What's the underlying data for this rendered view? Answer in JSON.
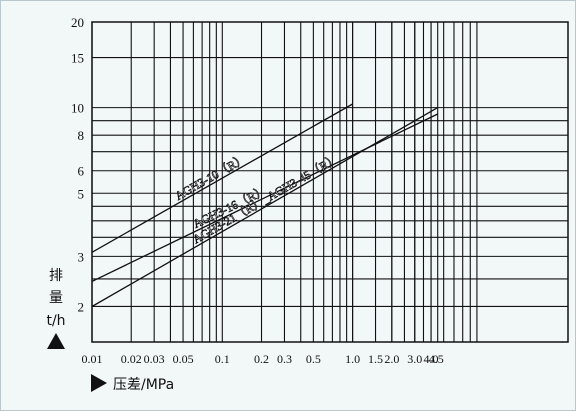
{
  "chart_data": {
    "type": "line",
    "x_scale": "log",
    "y_scale": "log",
    "xlim": [
      0.01,
      45
    ],
    "ylim": [
      1.5,
      20
    ],
    "grid": true,
    "x_ticks": [
      0.01,
      0.02,
      0.03,
      0.05,
      0.1,
      0.2,
      0.3,
      0.5,
      1.0,
      1.5,
      2.0,
      3.0,
      4.0,
      4.5
    ],
    "x_tick_labels": [
      "0.01",
      "0.02",
      "0.03",
      "0.05",
      "0.1",
      "0.2",
      "0.3",
      "0.5",
      "1.0",
      "1.5",
      "2.0",
      "3.0",
      "4.0",
      "4.5"
    ],
    "y_ticks": [
      2,
      3,
      5,
      6,
      8,
      10,
      15,
      20
    ],
    "y_tick_labels": [
      "2",
      "3",
      "5",
      "6",
      "8",
      "10",
      "15",
      "20"
    ],
    "ylabel_lines": [
      "排",
      "量",
      "t/h"
    ],
    "xlabel": "压差/MPa",
    "series": [
      {
        "name": "AGH3-10（R）",
        "x": [
          0.01,
          1.0
        ],
        "y": [
          3.1,
          10.3
        ]
      },
      {
        "name": "AGH3-16（R）",
        "x": [
          0.01,
          4.5
        ],
        "y": [
          2.45,
          9.5
        ]
      },
      {
        "name": "AGH3-21（R）_AGH3-45（R）",
        "x": [
          0.01,
          4.5
        ],
        "y": [
          2.0,
          10.0
        ]
      }
    ]
  }
}
